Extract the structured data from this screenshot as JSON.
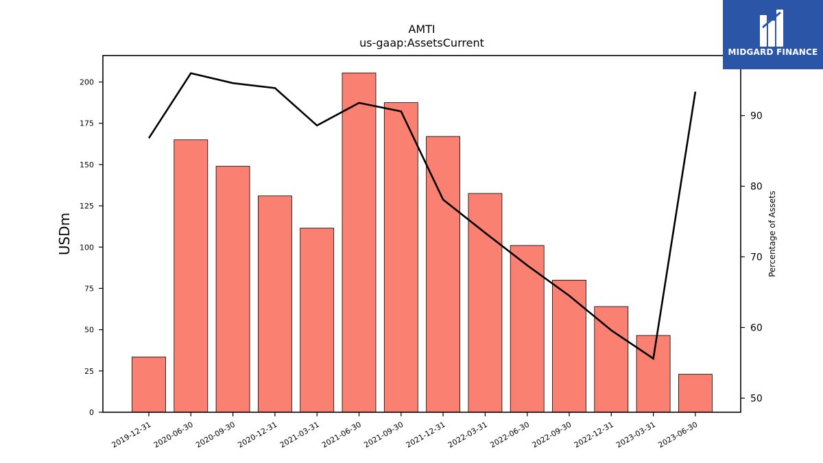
{
  "chart_data": {
    "type": "bar",
    "title": "AMTI",
    "subtitle": "us-gaap:AssetsCurrent",
    "ylabel": "USDm",
    "y2label": "Percentage of Assets",
    "ylim": [
      0,
      216
    ],
    "y2lim": [
      48.0,
      98.5
    ],
    "yticks": [
      0,
      25,
      50,
      75,
      100,
      125,
      150,
      175,
      200
    ],
    "y2ticks": [
      50,
      60,
      70,
      80,
      90
    ],
    "categories": [
      "2019-12-31",
      "2020-06-30",
      "2020-09-30",
      "2020-12-31",
      "2021-03-31",
      "2021-06-30",
      "2021-09-30",
      "2021-12-31",
      "2022-03-31",
      "2022-06-30",
      "2022-09-30",
      "2022-12-31",
      "2023-03-31",
      "2023-06-30"
    ],
    "series": [
      {
        "type": "bar",
        "axis": "left",
        "color": "#fa8072",
        "values": [
          33.5,
          165,
          149,
          131,
          111.5,
          205.5,
          187.5,
          167,
          132.5,
          101,
          80,
          64,
          46.5,
          23
        ]
      },
      {
        "type": "line",
        "axis": "right",
        "color": "#000000",
        "values": [
          86.8,
          96.0,
          94.6,
          93.9,
          88.6,
          91.8,
          90.6,
          78.1,
          73.4,
          68.8,
          64.5,
          59.6,
          55.6,
          93.4
        ]
      }
    ],
    "grid": false
  },
  "logo": {
    "text": "MIDGARD FINANCE"
  }
}
